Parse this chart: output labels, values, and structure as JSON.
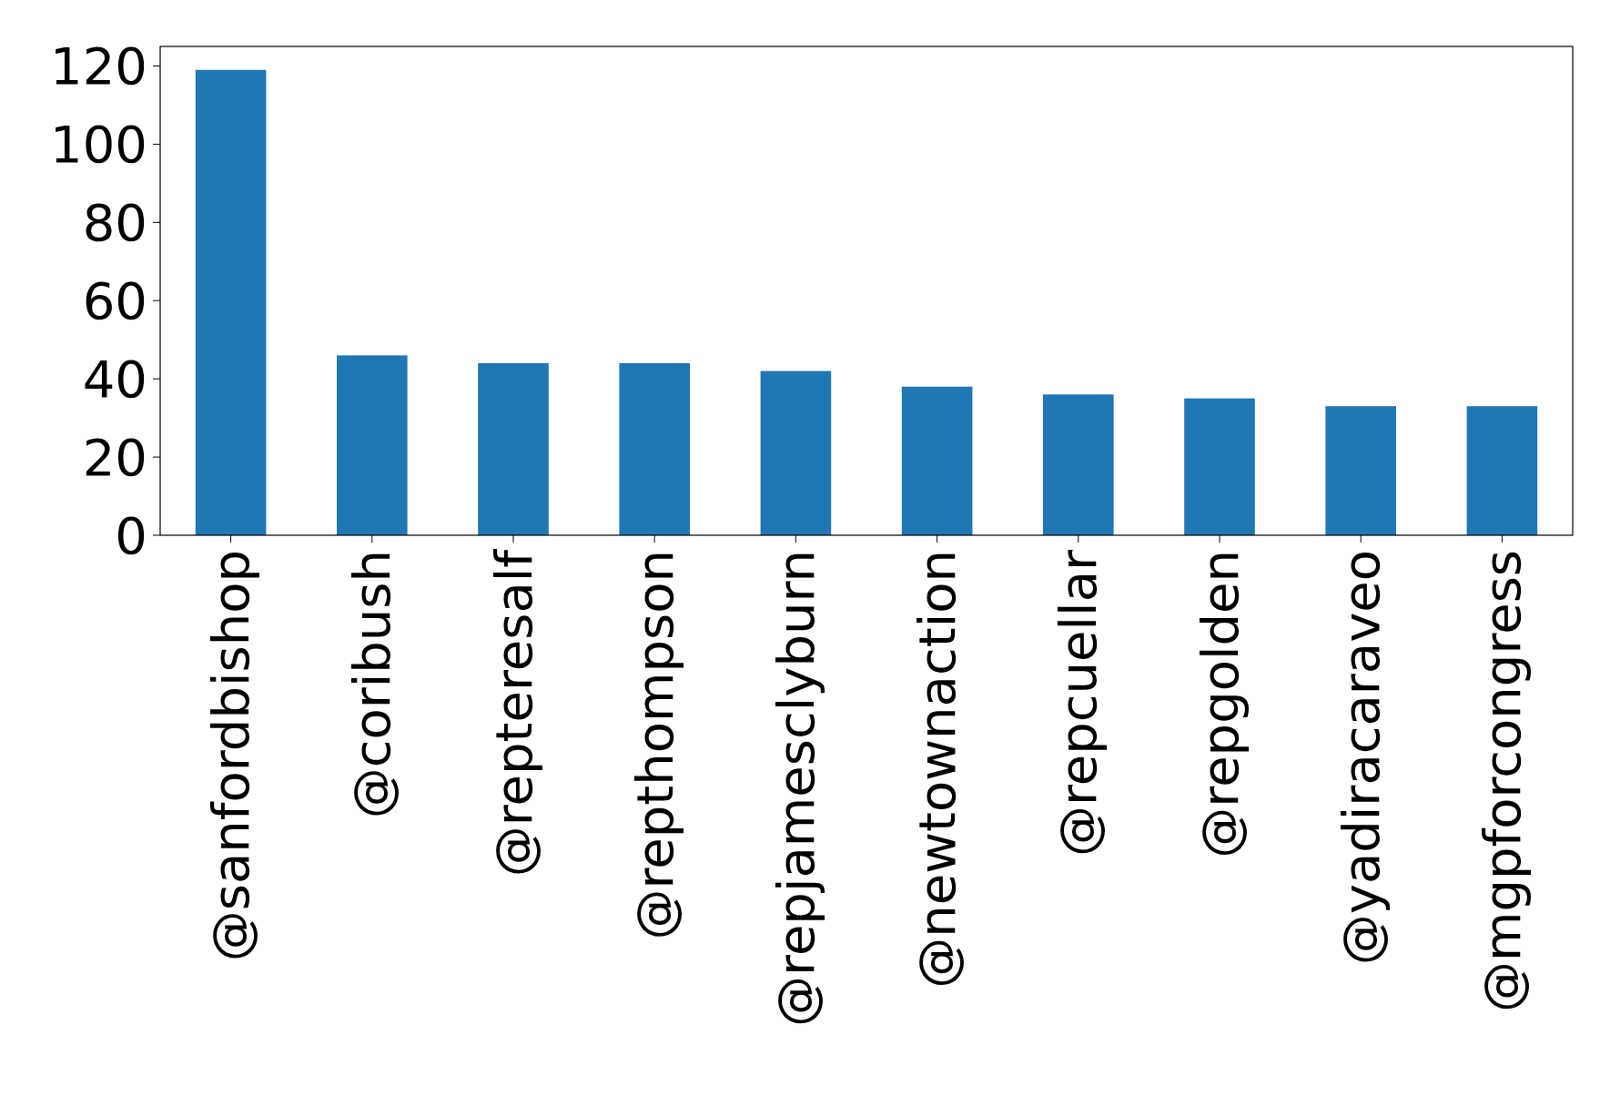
{
  "chart_data": {
    "type": "bar",
    "categories": [
      "@sanfordbishop",
      "@coribush",
      "@repteresalf",
      "@repthompson",
      "@repjamesclyburn",
      "@newtownaction",
      "@repcuellar",
      "@repgolden",
      "@yadiracaraveo",
      "@mgpforcongress"
    ],
    "values": [
      119,
      46,
      44,
      44,
      42,
      38,
      36,
      35,
      33,
      33
    ],
    "color": "#1f77b4",
    "ylim": [
      0,
      125
    ],
    "yticks": [
      0,
      20,
      40,
      60,
      80,
      100,
      120
    ],
    "grid": false
  }
}
